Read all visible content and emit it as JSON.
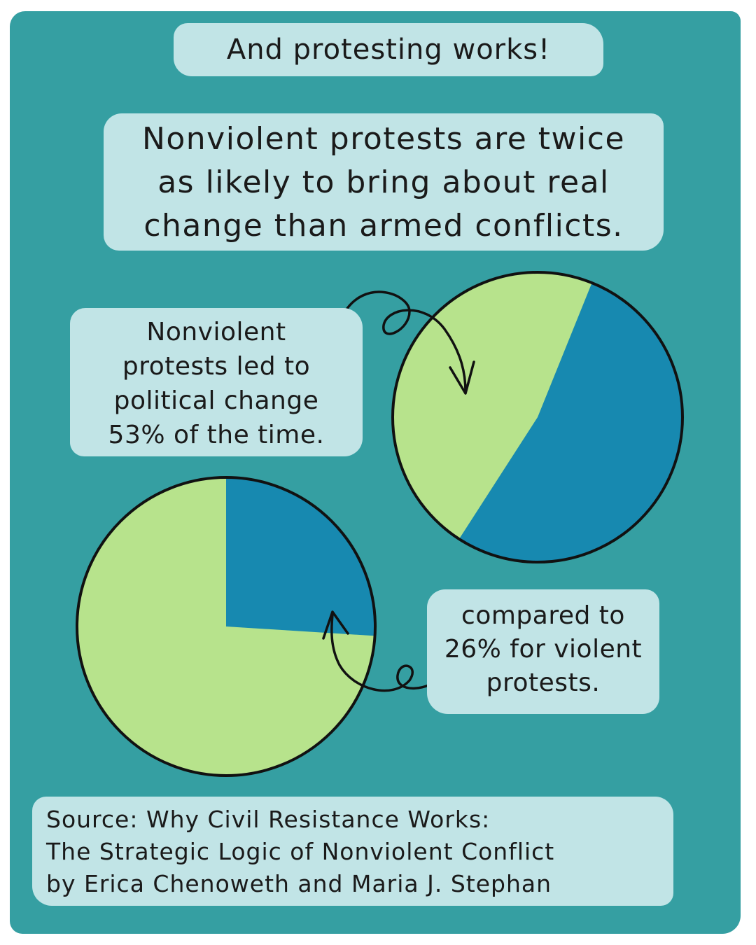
{
  "colors": {
    "background": "#359FA2",
    "label_background": "#C1E4E6",
    "success": "#1789B0",
    "other": "#B7E38C",
    "outline": "#111111"
  },
  "title": "And protesting works!",
  "headline": "Nonviolent protests are twice\nas likely to bring about real\nchange than armed conflicts.",
  "source": "Source: Why Civil Resistance Works:\nThe Strategic Logic of Nonviolent Conflict\nby Erica Chenoweth and Maria J. Stephan",
  "chart_data": [
    {
      "type": "pie",
      "annotation": "Nonviolent\nprotests led to\npolitical change\n53% of the time.",
      "slices": [
        {
          "value": 53,
          "color": "#1789B0"
        },
        {
          "value": 47,
          "color": "#B7E38C"
        }
      ]
    },
    {
      "type": "pie",
      "annotation": "compared to\n26% for violent\nprotests.",
      "slices": [
        {
          "value": 26,
          "color": "#1789B0"
        },
        {
          "value": 74,
          "color": "#B7E38C"
        }
      ]
    }
  ]
}
